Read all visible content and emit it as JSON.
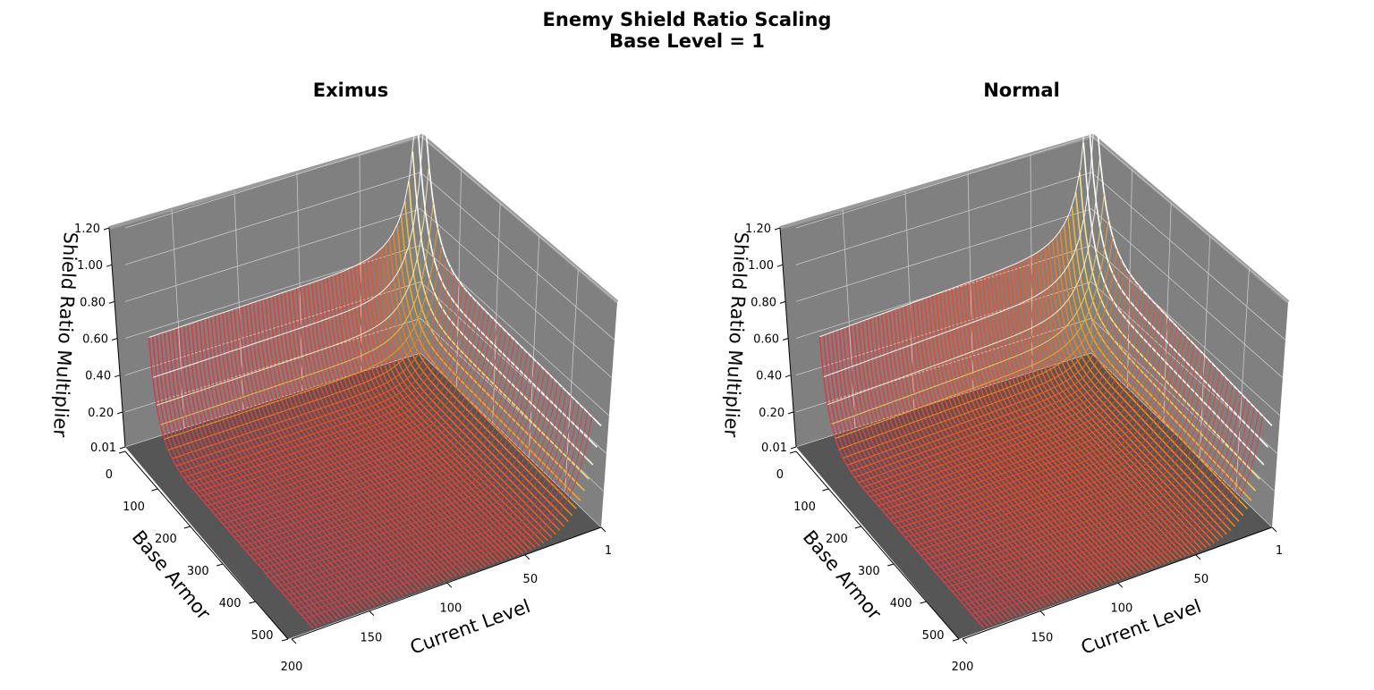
{
  "suptitle": {
    "line1": "Enemy Shield Ratio Scaling",
    "line2": "Base Level = 1"
  },
  "colors": {
    "pane": "#808080",
    "floor": "#565656",
    "grid": "#c8c8c8",
    "contour": "#0a0a14",
    "colormap": [
      "#000000",
      "#2a1060",
      "#5528c8",
      "#ff4020",
      "#f0a018",
      "#f0e080",
      "#ffffff"
    ]
  },
  "chart_data": [
    {
      "type": "surface3d",
      "title": "Eximus",
      "xlabel": "Current Level",
      "ylabel": "Base Armor",
      "zlabel": "Shield Ratio Multiplier",
      "xlim": [
        1,
        200
      ],
      "ylim": [
        0,
        500
      ],
      "zlim": [
        0.01,
        1.2
      ],
      "x_ticks": [
        "1",
        "50",
        "100",
        "150",
        "200"
      ],
      "x_tick_values": [
        1,
        50,
        100,
        150,
        200
      ],
      "y_ticks": [
        "0",
        "100",
        "200",
        "300",
        "400",
        "500"
      ],
      "y_tick_values": [
        0,
        100,
        200,
        300,
        400,
        500
      ],
      "z_ticks": [
        "0.01",
        "0.20",
        "0.40",
        "0.60",
        "0.80",
        "1.00",
        "1.20"
      ],
      "z_tick_values": [
        0.01,
        0.2,
        0.4,
        0.6,
        0.8,
        1.0,
        1.2
      ],
      "peak_value": 1.2,
      "armor_zero_plateau": 0.55,
      "level_one_edge": 0.55,
      "decay_armor": 0.06,
      "decay_level": 0.055,
      "far_tail_value": 0.05
    },
    {
      "type": "surface3d",
      "title": "Normal",
      "xlabel": "Current Level",
      "ylabel": "Base Armor",
      "zlabel": "Shield Ratio Multiplier",
      "xlim": [
        1,
        200
      ],
      "ylim": [
        0,
        500
      ],
      "zlim": [
        0.01,
        1.2
      ],
      "x_ticks": [
        "1",
        "50",
        "100",
        "150",
        "200"
      ],
      "x_tick_values": [
        1,
        50,
        100,
        150,
        200
      ],
      "y_ticks": [
        "0",
        "100",
        "200",
        "300",
        "400",
        "500"
      ],
      "y_tick_values": [
        0,
        100,
        200,
        300,
        400,
        500
      ],
      "z_ticks": [
        "0.01",
        "0.20",
        "0.40",
        "0.60",
        "0.80",
        "1.00",
        "1.20"
      ],
      "z_tick_values": [
        0.01,
        0.2,
        0.4,
        0.6,
        0.8,
        1.0,
        1.2
      ],
      "peak_value": 1.2,
      "armor_zero_plateau": 0.55,
      "level_one_edge": 0.55,
      "decay_armor": 0.06,
      "decay_level": 0.055,
      "far_tail_value": 0.1
    }
  ]
}
